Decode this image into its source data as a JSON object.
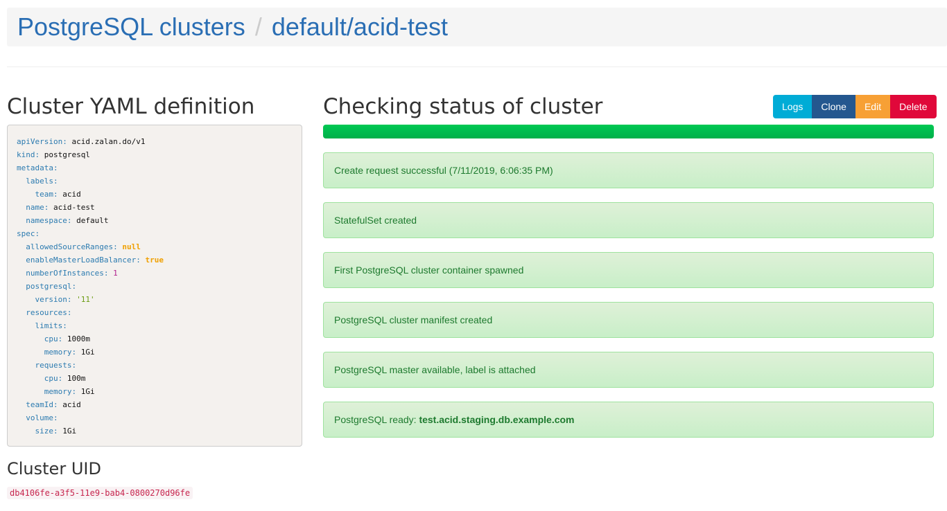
{
  "breadcrumb": {
    "root": "PostgreSQL clusters",
    "separator": "/",
    "current": "default/acid-test"
  },
  "yaml_title": "Cluster YAML definition",
  "yaml_lines": [
    {
      "indent": 0,
      "key": "apiVersion",
      "value": "acid.zalan.do/v1",
      "type": "v"
    },
    {
      "indent": 0,
      "key": "kind",
      "value": "postgresql",
      "type": "v"
    },
    {
      "indent": 0,
      "key": "metadata",
      "value": "",
      "type": "v"
    },
    {
      "indent": 1,
      "key": "labels",
      "value": "",
      "type": "v"
    },
    {
      "indent": 2,
      "key": "team",
      "value": "acid",
      "type": "v"
    },
    {
      "indent": 1,
      "key": "name",
      "value": "acid-test",
      "type": "v"
    },
    {
      "indent": 1,
      "key": "namespace",
      "value": "default",
      "type": "v"
    },
    {
      "indent": 0,
      "key": "spec",
      "value": "",
      "type": "v"
    },
    {
      "indent": 1,
      "key": "allowedSourceRanges",
      "value": "null",
      "type": "b"
    },
    {
      "indent": 1,
      "key": "enableMasterLoadBalancer",
      "value": "true",
      "type": "b"
    },
    {
      "indent": 1,
      "key": "numberOfInstances",
      "value": "1",
      "type": "n"
    },
    {
      "indent": 1,
      "key": "postgresql",
      "value": "",
      "type": "v"
    },
    {
      "indent": 2,
      "key": "version",
      "value": "'11'",
      "type": "s"
    },
    {
      "indent": 1,
      "key": "resources",
      "value": "",
      "type": "v"
    },
    {
      "indent": 2,
      "key": "limits",
      "value": "",
      "type": "v"
    },
    {
      "indent": 3,
      "key": "cpu",
      "value": "1000m",
      "type": "v"
    },
    {
      "indent": 3,
      "key": "memory",
      "value": "1Gi",
      "type": "v"
    },
    {
      "indent": 2,
      "key": "requests",
      "value": "",
      "type": "v"
    },
    {
      "indent": 3,
      "key": "cpu",
      "value": "100m",
      "type": "v"
    },
    {
      "indent": 3,
      "key": "memory",
      "value": "1Gi",
      "type": "v"
    },
    {
      "indent": 1,
      "key": "teamId",
      "value": "acid",
      "type": "v"
    },
    {
      "indent": 1,
      "key": "volume",
      "value": "",
      "type": "v"
    },
    {
      "indent": 2,
      "key": "size",
      "value": "1Gi",
      "type": "v"
    }
  ],
  "uid_title": "Cluster UID",
  "uid": "db4106fe-a3f5-11e9-bab4-0800270d96fe",
  "status_title": "Checking status of cluster",
  "progress_percent": 100,
  "buttons": [
    {
      "label": "Logs",
      "color": "#00acd6"
    },
    {
      "label": "Clone",
      "color": "#24578f"
    },
    {
      "label": "Edit",
      "color": "#f7a035"
    },
    {
      "label": "Delete",
      "color": "#e0083a"
    }
  ],
  "status_messages": [
    {
      "text": "Create request successful (7/11/2019, 6:06:35 PM)",
      "bold": ""
    },
    {
      "text": "StatefulSet created",
      "bold": ""
    },
    {
      "text": "First PostgreSQL cluster container spawned",
      "bold": ""
    },
    {
      "text": "PostgreSQL cluster manifest created",
      "bold": ""
    },
    {
      "text": "PostgreSQL master available, label is attached",
      "bold": ""
    },
    {
      "text": "PostgreSQL ready: ",
      "bold": "test.acid.staging.db.example.com"
    }
  ]
}
